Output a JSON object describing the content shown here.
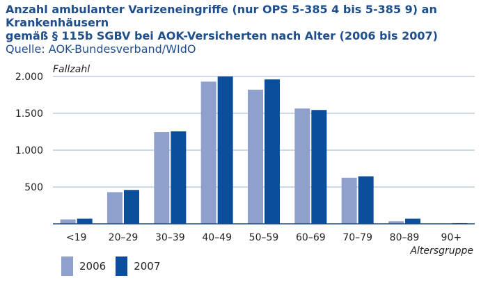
{
  "header": {
    "title_line1": "Anzahl ambulanter Varizeneingriffe (nur OPS 5-385 4 bis 5-385 9) an Krankenhäusern",
    "title_line2": "gemäß § 115b SGBV bei AOK-Versicherten nach Alter (2006 bis 2007)",
    "source": "Quelle: AOK-Bundesverband/WIdO"
  },
  "chart_data": {
    "type": "bar",
    "ylabel": "Fallzahl",
    "xlabel": "Altersgruppe",
    "ylim": [
      0,
      2000
    ],
    "yticks": [
      500,
      1000,
      1500,
      2000
    ],
    "ytick_labels": [
      "500",
      "1.000",
      "1.500",
      "2.000"
    ],
    "grid": true,
    "legend_position": "bottom-left",
    "categories": [
      "<19",
      "20–29",
      "30–39",
      "40–49",
      "50–59",
      "60–69",
      "70–79",
      "80–89",
      "90+"
    ],
    "series": [
      {
        "name": "2006",
        "color": "#8fa0cc",
        "values": [
          60,
          430,
          1245,
          1930,
          1820,
          1565,
          625,
          35,
          5
        ]
      },
      {
        "name": "2007",
        "color": "#0b4f9c",
        "values": [
          70,
          460,
          1255,
          2000,
          1960,
          1545,
          645,
          70,
          10
        ]
      }
    ]
  }
}
